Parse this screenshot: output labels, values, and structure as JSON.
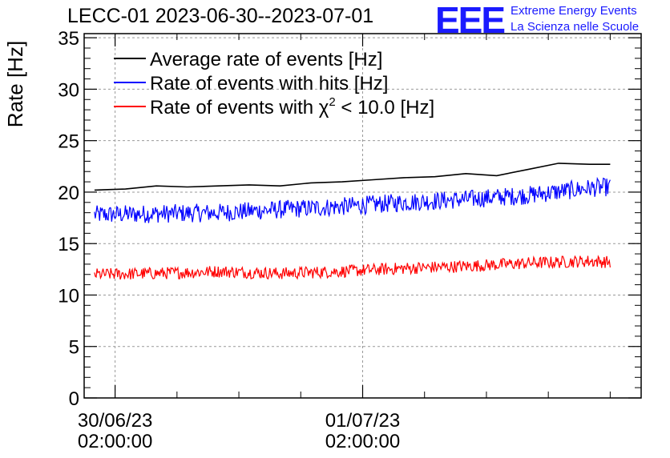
{
  "header": {
    "title": "LECC-01 2023-06-30--2023-07-01",
    "logo": "EEE",
    "logo_line1": "Extreme Energy Events",
    "logo_line2": "La Scienza nelle Scuole"
  },
  "colors": {
    "average": "#000000",
    "hits": "#0000ff",
    "chi2": "#ff0000",
    "logo": "#1a1aff"
  },
  "chart_data": {
    "type": "line",
    "title": "LECC-01 2023-06-30--2023-07-01",
    "xlabel": "",
    "ylabel": "Rate [Hz]",
    "ylim": [
      0,
      35.4
    ],
    "y_ticks": [
      0,
      5,
      10,
      15,
      20,
      25,
      30,
      35
    ],
    "x_range_hours": [
      "2023-06-29 23:00",
      "2023-07-02 05:00"
    ],
    "x_tick_labels": [
      {
        "x": "2023-06-30 02:00:00",
        "line1": "30/06/23",
        "line2": "02:00:00"
      },
      {
        "x": "2023-07-01 02:00:00",
        "line1": "01/07/23",
        "line2": "02:00:00"
      }
    ],
    "grid": true,
    "legend": "top-left",
    "series": [
      {
        "name": "Average rate of events [Hz]",
        "color": "#000000",
        "style": "smooth",
        "x": [
          "2023-06-30 00:00",
          "2023-06-30 03:00",
          "2023-06-30 06:00",
          "2023-06-30 09:00",
          "2023-06-30 12:00",
          "2023-06-30 15:00",
          "2023-06-30 18:00",
          "2023-06-30 21:00",
          "2023-07-01 00:00",
          "2023-07-01 03:00",
          "2023-07-01 06:00",
          "2023-07-01 09:00",
          "2023-07-01 12:00",
          "2023-07-01 15:00",
          "2023-07-01 18:00",
          "2023-07-01 21:00",
          "2023-07-02 00:00",
          "2023-07-02 02:00"
        ],
        "y": [
          20.2,
          20.3,
          20.6,
          20.5,
          20.6,
          20.7,
          20.6,
          20.9,
          21.0,
          21.2,
          21.4,
          21.5,
          21.8,
          21.6,
          22.2,
          22.8,
          22.7,
          22.7
        ]
      },
      {
        "name": "Rate of events with hits [Hz]",
        "color": "#0000ff",
        "style": "noisy",
        "noise_amplitude": 0.9,
        "x": [
          "2023-06-30 00:00",
          "2023-06-30 06:00",
          "2023-06-30 12:00",
          "2023-06-30 18:00",
          "2023-07-01 00:00",
          "2023-07-01 06:00",
          "2023-07-01 12:00",
          "2023-07-01 18:00",
          "2023-07-02 00:00",
          "2023-07-02 02:00"
        ],
        "y": [
          17.8,
          17.9,
          18.0,
          18.3,
          18.6,
          19.0,
          19.3,
          19.7,
          20.4,
          20.5
        ]
      },
      {
        "name": "Rate of events with χ² < 10.0 [Hz]",
        "color": "#ff0000",
        "style": "noisy",
        "noise_amplitude": 0.6,
        "x": [
          "2023-06-30 00:00",
          "2023-06-30 06:00",
          "2023-06-30 12:00",
          "2023-06-30 18:00",
          "2023-07-01 00:00",
          "2023-07-01 06:00",
          "2023-07-01 12:00",
          "2023-07-01 18:00",
          "2023-07-02 00:00",
          "2023-07-02 02:00"
        ],
        "y": [
          12.0,
          12.1,
          12.3,
          12.1,
          12.3,
          12.6,
          12.8,
          13.1,
          13.3,
          13.2
        ]
      }
    ],
    "legend_entries": [
      {
        "label": "Average rate of events [Hz]",
        "color": "#000000"
      },
      {
        "label": "Rate of events with hits [Hz]",
        "color": "#0000ff"
      },
      {
        "label_pre": "Rate of events with χ",
        "label_sup": "2",
        "label_post": " < 10.0 [Hz]",
        "color": "#ff0000"
      }
    ]
  }
}
